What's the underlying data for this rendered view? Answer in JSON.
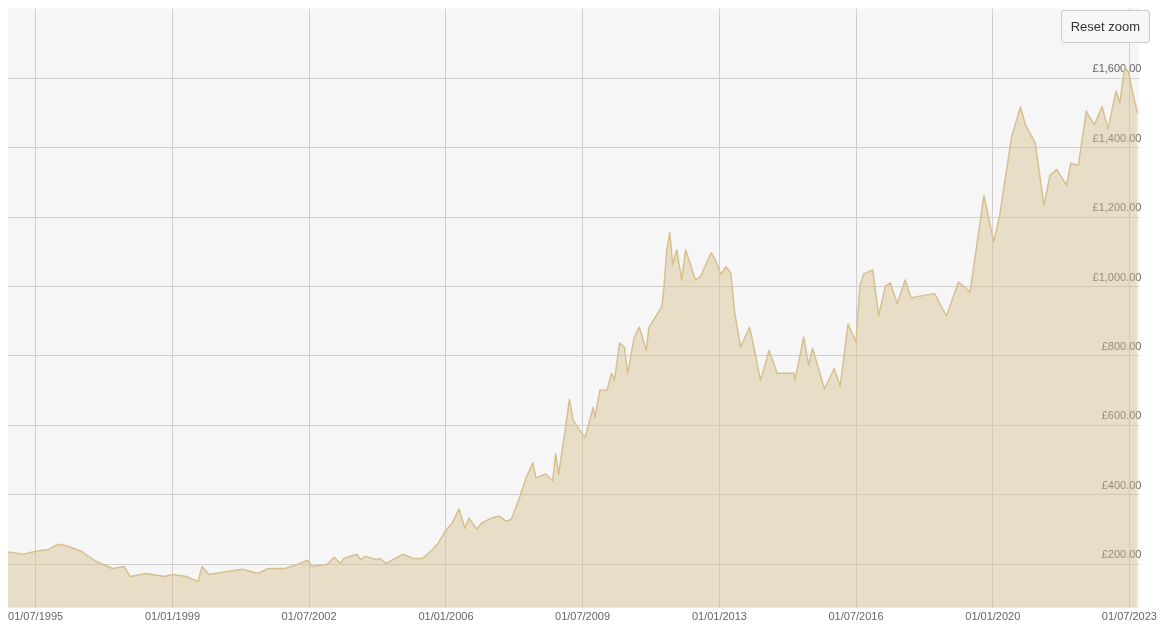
{
  "chart_data": {
    "type": "area",
    "x": [
      "1994-10-16",
      "1995-03-11",
      "1995-07-01",
      "1995-10-29",
      "1996-01-29",
      "1996-04-29",
      "1996-08-28",
      "1997-01-14",
      "1997-06-18",
      "1997-10-07",
      "1997-12-02",
      "1998-05-06",
      "1998-10-10",
      "1999-01-11",
      "1999-05-09",
      "1999-08-28",
      "1999-10-04",
      "1999-12-08",
      "2000-06-09",
      "2000-10-16",
      "2001-03-11",
      "2001-06-12",
      "2001-11-16",
      "2002-03-14",
      "2002-06-15",
      "2002-08-01",
      "2002-12-16",
      "2003-02-20",
      "2003-04-23",
      "2003-05-21",
      "2003-09-19",
      "2003-10-25",
      "2003-12-11",
      "2004-03-20",
      "2004-04-26",
      "2004-06-21",
      "2004-11-25",
      "2005-02-26",
      "2005-05-27",
      "2005-08-28",
      "2005-10-13",
      "2005-12-26",
      "2006-02-28",
      "2006-05-03",
      "2006-06-27",
      "2006-08-04",
      "2006-10-16",
      "2006-12-01",
      "2007-03-02",
      "2007-05-15",
      "2007-07-18",
      "2007-09-04",
      "2007-11-16",
      "2008-01-20",
      "2008-03-23",
      "2008-04-21",
      "2008-07-22",
      "2008-09-25",
      "2008-10-22",
      "2008-11-19",
      "2009-01-23",
      "2009-02-28",
      "2009-04-05",
      "2009-07-25",
      "2009-10-07",
      "2009-10-25",
      "2009-12-10",
      "2010-02-14",
      "2010-03-29",
      "2010-04-26",
      "2010-06-12",
      "2010-07-28",
      "2010-08-25",
      "2010-10-28",
      "2010-12-13",
      "2011-01-11",
      "2011-02-17",
      "2011-03-14",
      "2011-07-12",
      "2011-08-01",
      "2011-08-28",
      "2011-09-25",
      "2011-10-22",
      "2011-11-28",
      "2012-01-14",
      "2012-02-20",
      "2012-05-21",
      "2012-07-06",
      "2012-10-16",
      "2012-11-22",
      "2013-01-17",
      "2013-03-02",
      "2013-04-17",
      "2013-05-24",
      "2013-07-18",
      "2013-10-10",
      "2013-11-25",
      "2014-01-20",
      "2014-04-11",
      "2014-06-24",
      "2014-11-28",
      "2014-12-08",
      "2015-02-28",
      "2015-04-15",
      "2015-05-21",
      "2015-09-10",
      "2015-12-10",
      "2016-02-04",
      "2016-04-17",
      "2016-06-30",
      "2016-08-06",
      "2016-09-12",
      "2016-12-04",
      "2017-01-29",
      "2017-04-02",
      "2017-05-18",
      "2017-07-21",
      "2017-10-04",
      "2017-11-28",
      "2018-02-28",
      "2018-07-06",
      "2018-10-25",
      "2019-02-14",
      "2019-06-02",
      "2019-10-10",
      "2020-01-10",
      "2020-03-05",
      "2020-06-24",
      "2020-09-15",
      "2020-11-01",
      "2021-02-01",
      "2021-04-23",
      "2021-06-18",
      "2021-08-21",
      "2021-11-22",
      "2021-12-29",
      "2022-03-11",
      "2022-05-24",
      "2022-08-06",
      "2022-10-19",
      "2022-12-13",
      "2023-02-26",
      "2023-04-02",
      "2023-05-18",
      "2023-06-24",
      "2023-08-09",
      "2023-09-15"
    ],
    "series": [
      {
        "color": "#d6c08f",
        "values": [
          236,
          229,
          238,
          243,
          258,
          252,
          238,
          209,
          188,
          194,
          165,
          174,
          165,
          171,
          165,
          151,
          194,
          171,
          180,
          186,
          174,
          188,
          188,
          200,
          212,
          194,
          200,
          220,
          203,
          217,
          229,
          214,
          223,
          214,
          217,
          203,
          229,
          217,
          217,
          243,
          258,
          296,
          319,
          359,
          304,
          333,
          301,
          319,
          333,
          339,
          324,
          330,
          388,
          449,
          492,
          449,
          460,
          440,
          518,
          460,
          594,
          675,
          614,
          565,
          652,
          623,
          701,
          701,
          750,
          730,
          837,
          825,
          750,
          854,
          883,
          854,
          816,
          883,
          941,
          996,
          1106,
          1155,
          1062,
          1106,
          1019,
          1106,
          1019,
          1028,
          1097,
          1077,
          1034,
          1057,
          1039,
          924,
          825,
          883,
          816,
          730,
          816,
          750,
          750,
          730,
          854,
          773,
          822,
          705,
          764,
          712,
          892,
          840,
          1002,
          1036,
          1048,
          915,
          1002,
          1010,
          950,
          1019,
          967,
          973,
          979,
          915,
          1013,
          984,
          1262,
          1129,
          1204,
          1430,
          1517,
          1465,
          1413,
          1233,
          1320,
          1337,
          1291,
          1355,
          1349,
          1505,
          1465,
          1517,
          1453,
          1563,
          1528,
          1633,
          1615,
          1546,
          1500
        ]
      }
    ],
    "xlim": [
      "1994-10-16",
      "2023-10-03"
    ],
    "xticks": [
      {
        "value": "1995-07-01",
        "label": "01/07/1995"
      },
      {
        "value": "1999-01-01",
        "label": "01/01/1999"
      },
      {
        "value": "2002-07-01",
        "label": "01/07/2002"
      },
      {
        "value": "2006-01-01",
        "label": "01/01/2006"
      },
      {
        "value": "2009-07-01",
        "label": "01/07/2009"
      },
      {
        "value": "2013-01-01",
        "label": "01/01/2013"
      },
      {
        "value": "2016-07-01",
        "label": "01/07/2016"
      },
      {
        "value": "2020-01-01",
        "label": "01/01/2020"
      },
      {
        "value": "2023-07-01",
        "label": "01/07/2023"
      }
    ],
    "ylim": [
      75,
      1800
    ],
    "yticks": [
      {
        "value": 200,
        "label": "£200.00"
      },
      {
        "value": 400,
        "label": "£400.00"
      },
      {
        "value": 600,
        "label": "£600.00"
      },
      {
        "value": 800,
        "label": "£800.00"
      },
      {
        "value": 1000,
        "label": "£1,000.00"
      },
      {
        "value": 1200,
        "label": "£1,200.00"
      },
      {
        "value": 1400,
        "label": "£1,400.00"
      },
      {
        "value": 1600,
        "label": "£1,600.00"
      }
    ],
    "grid": true,
    "marker": "none",
    "legend": false,
    "annotations": [
      "Reset zoom"
    ]
  }
}
